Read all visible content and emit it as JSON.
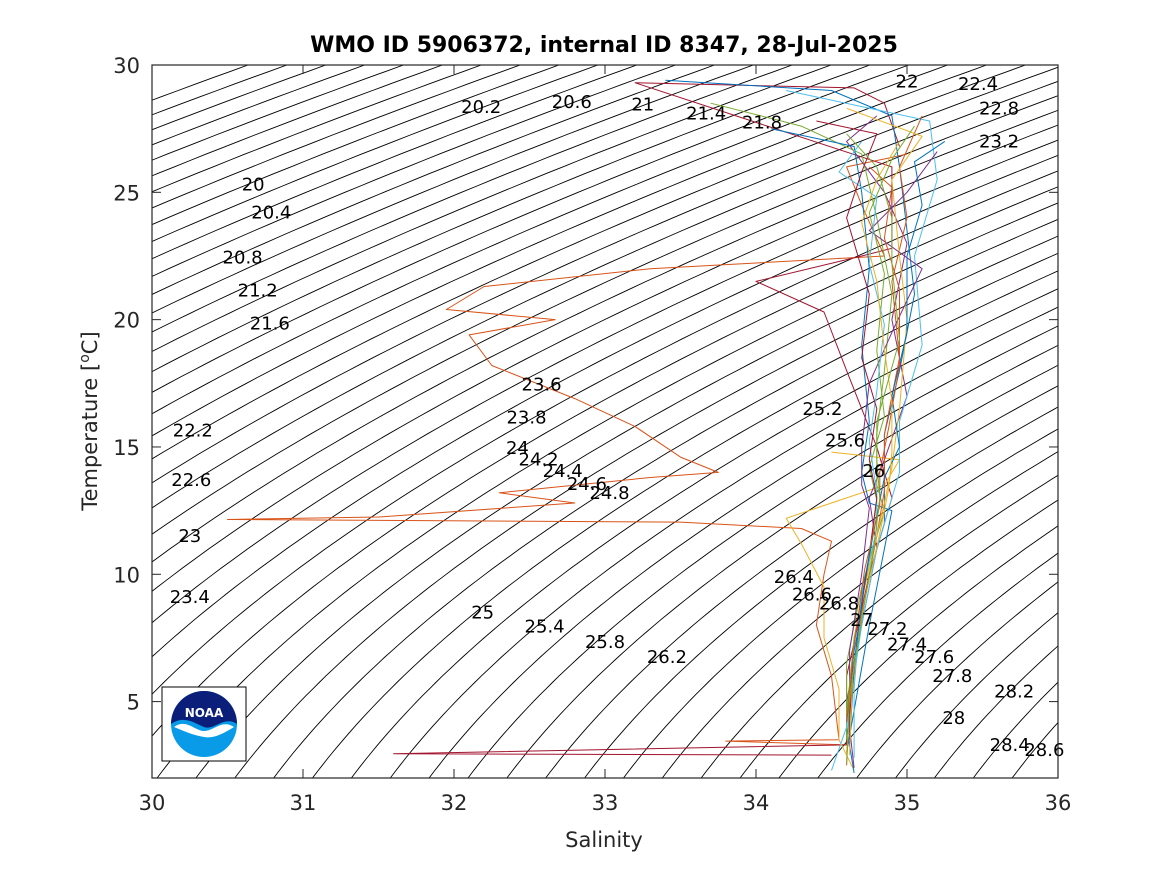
{
  "chart_data": {
    "type": "line",
    "title": "WMO ID 5906372, internal ID 8347, 28-Jul-2025",
    "xlabel": "Salinity",
    "ylabel": "Temperature [°C]",
    "xlim": [
      30,
      36
    ],
    "ylim": [
      2,
      30
    ],
    "xticks": [
      30,
      31,
      32,
      33,
      34,
      35,
      36
    ],
    "yticks": [
      5,
      10,
      15,
      20,
      25,
      30
    ],
    "xtick_labels": [
      "30",
      "31",
      "32",
      "33",
      "34",
      "35",
      "36"
    ],
    "ytick_labels": [
      "5",
      "10",
      "15",
      "20",
      "25",
      "30"
    ],
    "grid": false,
    "legend": "none",
    "logo": "noaa-logo",
    "density_contours": [
      {
        "label": "20",
        "x": 30.67,
        "y": 25.3
      },
      {
        "label": "20.2",
        "x": 32.18,
        "y": 28.35
      },
      {
        "label": "20.4",
        "x": 30.79,
        "y": 24.2
      },
      {
        "label": "20.6",
        "x": 32.78,
        "y": 28.55
      },
      {
        "label": "20.8",
        "x": 30.6,
        "y": 22.45
      },
      {
        "label": "21",
        "x": 33.25,
        "y": 28.45
      },
      {
        "label": "21.2",
        "x": 30.7,
        "y": 21.15
      },
      {
        "label": "21.4",
        "x": 33.67,
        "y": 28.1
      },
      {
        "label": "21.6",
        "x": 30.78,
        "y": 19.85
      },
      {
        "label": "21.8",
        "x": 34.04,
        "y": 27.75
      },
      {
        "label": "22",
        "x": 35.0,
        "y": 29.35
      },
      {
        "label": "22.2",
        "x": 30.27,
        "y": 15.65
      },
      {
        "label": "22.4",
        "x": 35.47,
        "y": 29.25
      },
      {
        "label": "22.6",
        "x": 30.26,
        "y": 13.7
      },
      {
        "label": "22.8",
        "x": 35.61,
        "y": 28.3
      },
      {
        "label": "23",
        "x": 30.25,
        "y": 11.5
      },
      {
        "label": "23.2",
        "x": 35.61,
        "y": 27.0
      },
      {
        "label": "23.4",
        "x": 30.25,
        "y": 9.1
      },
      {
        "label": "23.6",
        "x": 32.58,
        "y": 17.45
      },
      {
        "label": "23.8",
        "x": 32.48,
        "y": 16.15
      },
      {
        "label": "24",
        "x": 32.42,
        "y": 14.95
      },
      {
        "label": "24.2",
        "x": 32.56,
        "y": 14.5
      },
      {
        "label": "24.4",
        "x": 32.72,
        "y": 14.05
      },
      {
        "label": "24.6",
        "x": 32.88,
        "y": 13.55
      },
      {
        "label": "24.8",
        "x": 33.03,
        "y": 13.2
      },
      {
        "label": "25",
        "x": 32.19,
        "y": 8.5
      },
      {
        "label": "25.2",
        "x": 34.44,
        "y": 16.5
      },
      {
        "label": "25.4",
        "x": 32.6,
        "y": 7.95
      },
      {
        "label": "25.6",
        "x": 34.59,
        "y": 15.25
      },
      {
        "label": "25.8",
        "x": 33.0,
        "y": 7.35
      },
      {
        "label": "26",
        "x": 34.78,
        "y": 14.05
      },
      {
        "label": "26.2",
        "x": 33.41,
        "y": 6.75
      },
      {
        "label": "26.4",
        "x": 34.25,
        "y": 9.9
      },
      {
        "label": "26.6",
        "x": 34.37,
        "y": 9.2
      },
      {
        "label": "26.8",
        "x": 34.55,
        "y": 8.85
      },
      {
        "label": "27",
        "x": 34.7,
        "y": 8.2
      },
      {
        "label": "27.2",
        "x": 34.87,
        "y": 7.85
      },
      {
        "label": "27.4",
        "x": 35.0,
        "y": 7.25
      },
      {
        "label": "27.6",
        "x": 35.18,
        "y": 6.75
      },
      {
        "label": "27.8",
        "x": 35.3,
        "y": 6.0
      },
      {
        "label": "28",
        "x": 35.31,
        "y": 4.35
      },
      {
        "label": "28.2",
        "x": 35.71,
        "y": 5.4
      },
      {
        "label": "28.4",
        "x": 35.68,
        "y": 3.3
      },
      {
        "label": "28.6",
        "x": 35.91,
        "y": 3.1
      }
    ],
    "series": [
      {
        "color": "#d95319",
        "points": [
          [
            35.0,
            26.5
          ],
          [
            34.6,
            26.0
          ],
          [
            34.7,
            24.5
          ],
          [
            34.85,
            22.5
          ],
          [
            33.3,
            22.0
          ],
          [
            32.2,
            21.3
          ],
          [
            31.95,
            20.4
          ],
          [
            32.67,
            20.0
          ],
          [
            32.1,
            19.4
          ],
          [
            32.25,
            18.2
          ],
          [
            32.8,
            16.9
          ],
          [
            33.2,
            15.8
          ],
          [
            33.5,
            14.6
          ],
          [
            33.75,
            14.0
          ],
          [
            33.3,
            13.8
          ],
          [
            32.3,
            13.2
          ],
          [
            32.8,
            12.8
          ],
          [
            31.5,
            12.25
          ],
          [
            30.5,
            12.15
          ],
          [
            33.5,
            12.05
          ],
          [
            34.3,
            11.8
          ],
          [
            34.5,
            11.3
          ],
          [
            34.45,
            10.0
          ],
          [
            34.4,
            8.0
          ],
          [
            34.5,
            6.0
          ],
          [
            34.55,
            3.5
          ],
          [
            33.8,
            3.45
          ],
          [
            34.6,
            3.3
          ]
        ]
      },
      {
        "color": "#a2142f",
        "points": [
          [
            34.95,
            26.8
          ],
          [
            34.85,
            28.5
          ],
          [
            34.65,
            29.1
          ],
          [
            33.2,
            29.3
          ],
          [
            34.9,
            26.0
          ],
          [
            34.9,
            22.8
          ],
          [
            34.7,
            22.5
          ],
          [
            34.0,
            21.5
          ],
          [
            34.45,
            20.3
          ],
          [
            34.6,
            18.0
          ],
          [
            34.8,
            15.0
          ],
          [
            34.9,
            13.0
          ],
          [
            34.75,
            10.0
          ],
          [
            34.6,
            6.0
          ],
          [
            34.6,
            3.3
          ],
          [
            31.6,
            2.95
          ],
          [
            34.5,
            2.9
          ]
        ]
      },
      {
        "color": "#edb120",
        "points": [
          [
            34.5,
            14.8
          ],
          [
            34.95,
            14.5
          ],
          [
            34.85,
            13.5
          ],
          [
            34.5,
            12.8
          ],
          [
            34.2,
            12.2
          ],
          [
            34.3,
            11.2
          ],
          [
            34.45,
            9.5
          ],
          [
            34.45,
            7.5
          ],
          [
            34.55,
            5.5
          ],
          [
            34.55,
            3.5
          ],
          [
            34.65,
            2.3
          ]
        ]
      },
      {
        "color": "#0072bd",
        "points": [
          [
            33.4,
            29.4
          ],
          [
            34.5,
            29.0
          ],
          [
            34.9,
            28.0
          ],
          [
            34.95,
            26.0
          ],
          [
            35.0,
            23.5
          ],
          [
            35.05,
            21.0
          ],
          [
            34.95,
            18.0
          ],
          [
            34.85,
            15.5
          ],
          [
            34.85,
            13.5
          ],
          [
            34.85,
            12.0
          ],
          [
            34.75,
            10.0
          ],
          [
            34.65,
            7.0
          ],
          [
            34.6,
            4.0
          ],
          [
            34.65,
            2.2
          ]
        ]
      },
      {
        "color": "#7e2f8e",
        "points": [
          [
            34.8,
            28.0
          ],
          [
            34.6,
            27.0
          ],
          [
            34.85,
            25.0
          ],
          [
            35.0,
            23.0
          ],
          [
            34.9,
            20.0
          ],
          [
            35.0,
            17.0
          ],
          [
            34.85,
            14.5
          ],
          [
            34.75,
            13.0
          ],
          [
            34.8,
            11.0
          ],
          [
            34.7,
            8.0
          ],
          [
            34.6,
            5.0
          ],
          [
            34.65,
            2.4
          ]
        ]
      },
      {
        "color": "#77ac30",
        "points": [
          [
            33.7,
            28.5
          ],
          [
            34.3,
            27.6
          ],
          [
            34.7,
            26.5
          ],
          [
            34.8,
            24.0
          ],
          [
            34.9,
            21.0
          ],
          [
            34.85,
            18.0
          ],
          [
            34.8,
            15.5
          ],
          [
            34.8,
            13.5
          ],
          [
            34.85,
            12.5
          ],
          [
            34.7,
            9.5
          ],
          [
            34.6,
            6.5
          ],
          [
            34.6,
            3.5
          ]
        ]
      },
      {
        "color": "#4dbeee",
        "points": [
          [
            34.2,
            29.0
          ],
          [
            35.15,
            27.8
          ],
          [
            35.2,
            25.5
          ],
          [
            35.05,
            22.5
          ],
          [
            35.1,
            19.0
          ],
          [
            34.95,
            16.0
          ],
          [
            34.95,
            14.0
          ],
          [
            34.9,
            13.0
          ],
          [
            34.8,
            11.0
          ],
          [
            34.7,
            8.0
          ],
          [
            34.6,
            4.0
          ],
          [
            34.5,
            2.3
          ]
        ]
      },
      {
        "color": "#0072bd",
        "points": [
          [
            34.1,
            27.5
          ],
          [
            34.65,
            26.8
          ],
          [
            34.7,
            25.0
          ],
          [
            34.75,
            22.0
          ],
          [
            34.7,
            19.0
          ],
          [
            34.75,
            16.0
          ],
          [
            34.7,
            14.0
          ],
          [
            34.75,
            12.8
          ],
          [
            34.9,
            12.5
          ],
          [
            34.85,
            11.0
          ],
          [
            34.75,
            8.0
          ],
          [
            34.6,
            3.0
          ]
        ]
      },
      {
        "color": "#d95319",
        "points": [
          [
            35.1,
            28.0
          ],
          [
            34.95,
            26.0
          ],
          [
            35.0,
            24.0
          ],
          [
            34.9,
            21.5
          ],
          [
            34.95,
            18.5
          ],
          [
            34.85,
            15.5
          ],
          [
            34.85,
            13.3
          ],
          [
            34.8,
            11.5
          ],
          [
            34.7,
            8.5
          ],
          [
            34.62,
            5.0
          ],
          [
            34.6,
            2.5
          ]
        ]
      },
      {
        "color": "#edb120",
        "points": [
          [
            34.6,
            28.3
          ],
          [
            35.1,
            27.2
          ],
          [
            34.9,
            25.5
          ],
          [
            34.95,
            22.5
          ],
          [
            35.0,
            20.0
          ],
          [
            34.95,
            16.5
          ],
          [
            34.9,
            14.2
          ],
          [
            34.85,
            12.8
          ],
          [
            34.7,
            9.0
          ],
          [
            34.65,
            6.0
          ],
          [
            34.6,
            3.0
          ]
        ]
      },
      {
        "color": "#7e2f8e",
        "points": [
          [
            35.2,
            26.6
          ],
          [
            35.0,
            25.0
          ],
          [
            34.75,
            23.5
          ],
          [
            35.1,
            22.0
          ],
          [
            34.9,
            19.5
          ],
          [
            34.75,
            17.5
          ],
          [
            34.7,
            15.0
          ],
          [
            34.7,
            13.5
          ],
          [
            34.75,
            12.6
          ],
          [
            34.7,
            10.0
          ],
          [
            34.62,
            7.0
          ],
          [
            34.62,
            3.5
          ]
        ]
      },
      {
        "color": "#77ac30",
        "points": [
          [
            35.05,
            27.6
          ],
          [
            34.9,
            26.3
          ],
          [
            34.75,
            24.2
          ],
          [
            34.85,
            21.8
          ],
          [
            34.8,
            18.8
          ],
          [
            34.85,
            16.2
          ],
          [
            34.75,
            14.2
          ],
          [
            34.8,
            12.9
          ],
          [
            34.75,
            10.5
          ],
          [
            34.65,
            7.5
          ],
          [
            34.6,
            4.5
          ]
        ]
      },
      {
        "color": "#4dbeee",
        "points": [
          [
            34.7,
            27.0
          ],
          [
            34.55,
            25.8
          ],
          [
            34.8,
            24.8
          ],
          [
            34.75,
            22.2
          ],
          [
            34.85,
            19.8
          ],
          [
            34.8,
            17.2
          ],
          [
            34.75,
            15.2
          ],
          [
            34.8,
            13.2
          ],
          [
            34.8,
            11.8
          ],
          [
            34.7,
            9.2
          ],
          [
            34.65,
            5.5
          ],
          [
            34.65,
            2.8
          ]
        ]
      },
      {
        "color": "#a2142f",
        "points": [
          [
            34.4,
            27.8
          ],
          [
            34.8,
            27.3
          ],
          [
            34.7,
            25.8
          ],
          [
            34.6,
            24.0
          ],
          [
            34.75,
            21.0
          ],
          [
            34.7,
            18.5
          ],
          [
            34.8,
            16.5
          ],
          [
            34.75,
            14.5
          ],
          [
            34.8,
            13.0
          ],
          [
            34.75,
            10.8
          ],
          [
            34.68,
            8.0
          ],
          [
            34.62,
            4.5
          ]
        ]
      },
      {
        "color": "#0072bd",
        "points": [
          [
            35.25,
            27.0
          ],
          [
            35.05,
            26.2
          ],
          [
            35.1,
            24.5
          ],
          [
            35.0,
            22.5
          ],
          [
            35.0,
            19.5
          ],
          [
            34.9,
            17.0
          ],
          [
            34.95,
            15.0
          ],
          [
            34.85,
            13.8
          ],
          [
            34.8,
            12.3
          ],
          [
            34.72,
            9.8
          ],
          [
            34.65,
            6.5
          ],
          [
            34.62,
            3.2
          ]
        ]
      },
      {
        "color": "#d95319",
        "points": [
          [
            34.75,
            26.0
          ],
          [
            34.9,
            25.2
          ],
          [
            34.85,
            23.2
          ],
          [
            34.95,
            21.2
          ],
          [
            34.95,
            18.2
          ],
          [
            34.88,
            15.8
          ],
          [
            34.82,
            14.0
          ],
          [
            34.82,
            12.7
          ],
          [
            34.72,
            10.2
          ],
          [
            34.65,
            7.2
          ],
          [
            34.6,
            4.2
          ]
        ]
      },
      {
        "color": "#edb120",
        "points": [
          [
            34.95,
            27.0
          ],
          [
            34.8,
            25.5
          ],
          [
            34.7,
            23.8
          ],
          [
            34.8,
            21.5
          ],
          [
            34.85,
            18.8
          ],
          [
            34.9,
            16.8
          ],
          [
            34.9,
            14.8
          ],
          [
            34.88,
            13.4
          ],
          [
            34.82,
            11.6
          ],
          [
            34.72,
            9.0
          ],
          [
            34.64,
            6.0
          ],
          [
            34.62,
            2.9
          ]
        ]
      },
      {
        "color": "#77ac30",
        "points": [
          [
            34.6,
            27.3
          ],
          [
            34.8,
            26.0
          ],
          [
            34.9,
            24.0
          ],
          [
            34.9,
            22.2
          ],
          [
            34.95,
            19.2
          ],
          [
            34.8,
            16.0
          ],
          [
            34.8,
            14.5
          ],
          [
            34.82,
            13.0
          ],
          [
            34.78,
            11.0
          ],
          [
            34.7,
            8.2
          ],
          [
            34.62,
            5.2
          ],
          [
            34.6,
            2.6
          ]
        ]
      }
    ]
  }
}
